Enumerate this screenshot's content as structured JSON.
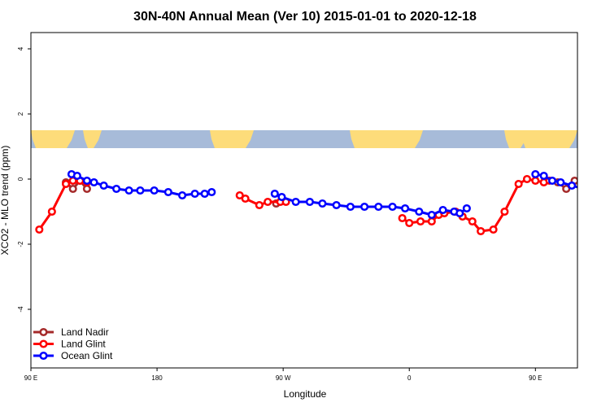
{
  "chart_data": {
    "type": "line",
    "title": "30N-40N Annual Mean (Ver 10)   2015-01-01 to 2020-12-18",
    "xlabel": "Longitude",
    "ylabel": "XCO2 - MLO trend (ppm)",
    "xlim": [
      90,
      480
    ],
    "ylim": [
      -5.8,
      4.5
    ],
    "xticks": [
      {
        "value": 90,
        "label": "90 E"
      },
      {
        "value": 180,
        "label": "180"
      },
      {
        "value": 270,
        "label": "90 W"
      },
      {
        "value": 360,
        "label": "0"
      },
      {
        "value": 450,
        "label": "90 E"
      },
      {
        "value": 540,
        "label": "180"
      }
    ],
    "yticks": [
      {
        "value": 4,
        "label": "4"
      },
      {
        "value": 2,
        "label": "2"
      },
      {
        "value": 0,
        "label": "0"
      },
      {
        "value": -2,
        "label": "-2"
      },
      {
        "value": -4,
        "label": "-4"
      }
    ],
    "grid": false,
    "legend_position": "bottom-left",
    "map_band": {
      "y_top": 1.5,
      "y_bottom": 0.95,
      "ocean_color": "#a7bbd9",
      "land_color": "#fddc7a"
    },
    "series": [
      {
        "name": "Land Nadir",
        "color": "#a52a2a",
        "segments": [
          [
            [
              115,
              -0.1
            ],
            [
              120,
              -0.3
            ],
            [
              125,
              -0.05
            ],
            [
              130,
              -0.3
            ]
          ],
          [
            [
              265,
              -0.75
            ]
          ],
          [
            [
              466,
              -0.1
            ],
            [
              472,
              -0.3
            ],
            [
              478,
              -0.05
            ],
            [
              484,
              -0.3
            ]
          ]
        ]
      },
      {
        "name": "Land Glint",
        "color": "#ff0000",
        "segments": [
          [
            [
              96,
              -1.55
            ],
            [
              105,
              -1.0
            ],
            [
              115,
              -0.15
            ],
            [
              120,
              -0.05
            ],
            [
              125,
              -0.05
            ],
            [
              130,
              -0.1
            ]
          ],
          [
            [
              239,
              -0.5
            ],
            [
              243,
              -0.6
            ],
            [
              253,
              -0.8
            ],
            [
              259,
              -0.7
            ],
            [
              268,
              -0.7
            ],
            [
              272,
              -0.7
            ]
          ],
          [
            [
              355,
              -1.2
            ],
            [
              360,
              -1.35
            ],
            [
              368,
              -1.3
            ],
            [
              376,
              -1.3
            ],
            [
              381,
              -1.1
            ],
            [
              385,
              -1.05
            ],
            [
              393,
              -1.0
            ],
            [
              398,
              -1.15
            ],
            [
              405,
              -1.3
            ],
            [
              411,
              -1.6
            ],
            [
              420,
              -1.55
            ],
            [
              428,
              -1.0
            ],
            [
              438,
              -0.15
            ],
            [
              444,
              0.0
            ],
            [
              450,
              -0.05
            ],
            [
              456,
              -0.1
            ],
            [
              460,
              -0.05
            ]
          ]
        ]
      },
      {
        "name": "Ocean Glint",
        "color": "#0000ff",
        "segments": [
          [
            [
              119,
              0.15
            ],
            [
              123,
              0.1
            ],
            [
              130,
              -0.05
            ],
            [
              135,
              -0.1
            ],
            [
              142,
              -0.2
            ],
            [
              151,
              -0.3
            ],
            [
              160,
              -0.35
            ],
            [
              168,
              -0.35
            ],
            [
              178,
              -0.35
            ],
            [
              188,
              -0.4
            ],
            [
              198,
              -0.5
            ],
            [
              207,
              -0.45
            ],
            [
              214,
              -0.45
            ],
            [
              219,
              -0.4
            ]
          ],
          [
            [
              264,
              -0.45
            ],
            [
              269,
              -0.55
            ],
            [
              279,
              -0.7
            ],
            [
              289,
              -0.7
            ],
            [
              298,
              -0.75
            ],
            [
              308,
              -0.8
            ],
            [
              318,
              -0.85
            ],
            [
              328,
              -0.85
            ],
            [
              338,
              -0.85
            ],
            [
              348,
              -0.85
            ],
            [
              357,
              -0.9
            ],
            [
              367,
              -1.0
            ],
            [
              376,
              -1.1
            ],
            [
              384,
              -0.95
            ],
            [
              392,
              -1.0
            ],
            [
              396,
              -1.05
            ],
            [
              401,
              -0.9
            ]
          ],
          [
            [
              450,
              0.15
            ],
            [
              456,
              0.1
            ],
            [
              462,
              -0.05
            ],
            [
              468,
              -0.1
            ],
            [
              476,
              -0.2
            ],
            [
              485,
              -0.3
            ],
            [
              495,
              -0.35
            ]
          ]
        ]
      }
    ]
  }
}
